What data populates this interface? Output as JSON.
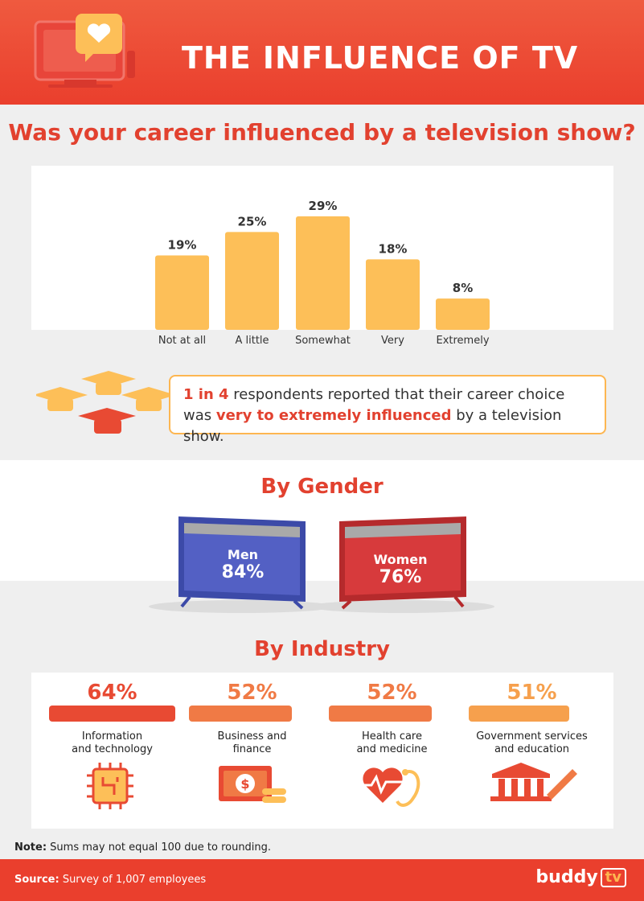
{
  "header": {
    "title": "THE INFLUENCE OF TV"
  },
  "question": "Was your career influenced by a television show?",
  "chart_data": {
    "type": "bar",
    "categories": [
      "Not at all",
      "A little",
      "Somewhat",
      "Very",
      "Extremely"
    ],
    "values": [
      19,
      25,
      29,
      18,
      8
    ],
    "value_labels": [
      "19%",
      "25%",
      "29%",
      "18%",
      "8%"
    ],
    "ylim": [
      0,
      30
    ],
    "grid": false,
    "bar_color": "#fdbf58"
  },
  "callout": {
    "part1": "1 in 4",
    "part2": " respondents reported that their career choice was ",
    "part3": "very to extremely influenced",
    "part4": " by a television show."
  },
  "gender": {
    "title": "By Gender",
    "men": {
      "label": "Men",
      "value": "84%",
      "color": "#5360c4"
    },
    "women": {
      "label": "Women",
      "value": "76%",
      "color": "#d73a3c"
    }
  },
  "industry": {
    "title": "By Industry",
    "items": [
      {
        "pct": "64%",
        "value": 64,
        "label_line1": "Information",
        "label_line2": "and technology",
        "color": "#e84a33",
        "icon": "circuit-chip-icon"
      },
      {
        "pct": "52%",
        "value": 52,
        "label_line1": "Business and",
        "label_line2": "finance",
        "color": "#f07a45",
        "icon": "money-icon"
      },
      {
        "pct": "52%",
        "value": 52,
        "label_line1": "Health care",
        "label_line2": "and medicine",
        "color": "#f07a45",
        "icon": "heart-stethoscope-icon"
      },
      {
        "pct": "51%",
        "value": 51,
        "label_line1": "Government services",
        "label_line2": "and education",
        "color": "#f6a04d",
        "icon": "government-building-icon"
      }
    ]
  },
  "note": {
    "label": "Note:",
    "text": " Sums may not equal 100 due to rounding."
  },
  "footer": {
    "source_label": "Source:",
    "source_text": " Survey of 1,007 employees",
    "logo_text": "buddy",
    "logo_tv": "tv"
  }
}
